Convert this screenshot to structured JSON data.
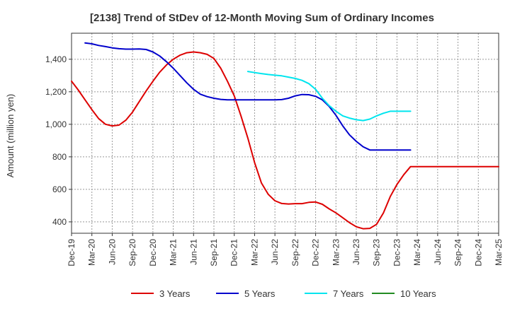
{
  "chart_data": {
    "type": "line",
    "title": "[2138]  Trend of StDev of 12-Month Moving Sum of Ordinary Incomes",
    "xlabel": "",
    "ylabel": "Amount (million yen)",
    "ylim": [
      330,
      1560
    ],
    "yticks": [
      400,
      600,
      800,
      1000,
      1200,
      1400
    ],
    "ytick_labels": [
      "400",
      "600",
      "800",
      "1,000",
      "1,200",
      "1,400"
    ],
    "x_tick_labels": [
      "Dec-19",
      "Mar-20",
      "Jun-20",
      "Sep-20",
      "Dec-20",
      "Mar-21",
      "Jun-21",
      "Sep-21",
      "Dec-21",
      "Mar-22",
      "Jun-22",
      "Sep-22",
      "Dec-22",
      "Mar-23",
      "Jun-23",
      "Sep-23",
      "Dec-23",
      "Mar-24",
      "Jun-24",
      "Sep-24",
      "Dec-24",
      "Mar-25"
    ],
    "x_index_range": [
      0,
      63
    ],
    "grid": true,
    "legend_position": "bottom",
    "series": [
      {
        "name": "3 Years",
        "color": "#dd0000",
        "x": [
          0,
          1,
          2,
          3,
          4,
          5,
          6,
          7,
          8,
          9,
          10,
          11,
          12,
          13,
          14,
          15,
          16,
          17,
          18,
          19,
          20,
          21,
          22,
          23,
          24,
          25,
          26,
          27,
          28,
          29,
          30,
          31,
          32,
          33,
          34,
          35,
          36,
          37,
          38,
          39,
          40,
          41,
          42,
          43,
          44,
          45,
          46,
          47,
          48,
          49,
          50,
          51,
          52,
          53,
          54,
          55,
          56,
          57,
          58,
          59,
          60,
          61,
          62,
          63
        ],
        "values": [
          1265,
          1210,
          1150,
          1090,
          1035,
          1000,
          990,
          995,
          1025,
          1075,
          1140,
          1205,
          1265,
          1320,
          1365,
          1400,
          1425,
          1440,
          1445,
          1440,
          1430,
          1405,
          1345,
          1265,
          1175,
          1050,
          915,
          765,
          640,
          570,
          530,
          513,
          510,
          512,
          512,
          520,
          522,
          508,
          480,
          455,
          425,
          395,
          370,
          358,
          360,
          385,
          455,
          555,
          630,
          690,
          740,
          740,
          740,
          740,
          740,
          740,
          740,
          740,
          740,
          740,
          740,
          740,
          740,
          740
        ]
      },
      {
        "name": "5 Years",
        "color": "#0000cc",
        "x": [
          2,
          3,
          4,
          5,
          6,
          7,
          8,
          9,
          10,
          11,
          12,
          13,
          14,
          15,
          16,
          17,
          18,
          19,
          20,
          21,
          22,
          23,
          24,
          25,
          26,
          27,
          28,
          29,
          30,
          31,
          32,
          33,
          34,
          35,
          36,
          37,
          38,
          39,
          40,
          41,
          42,
          43,
          44,
          45,
          46,
          47,
          48,
          49,
          50
        ],
        "values": [
          1500,
          1495,
          1485,
          1478,
          1470,
          1465,
          1462,
          1462,
          1463,
          1460,
          1445,
          1420,
          1385,
          1345,
          1300,
          1255,
          1215,
          1185,
          1170,
          1160,
          1153,
          1150,
          1150,
          1150,
          1150,
          1150,
          1150,
          1150,
          1150,
          1152,
          1160,
          1175,
          1183,
          1182,
          1172,
          1150,
          1110,
          1055,
          990,
          935,
          895,
          862,
          842,
          842,
          842,
          842,
          842,
          842,
          842
        ]
      },
      {
        "name": "7 Years",
        "color": "#00e5ee",
        "x": [
          26,
          27,
          28,
          29,
          30,
          31,
          32,
          33,
          34,
          35,
          36,
          37,
          38,
          39,
          40,
          41,
          42,
          43,
          44,
          45,
          46,
          47,
          48,
          49,
          50
        ],
        "values": [
          1325,
          1318,
          1312,
          1306,
          1302,
          1298,
          1290,
          1282,
          1270,
          1250,
          1215,
          1160,
          1115,
          1080,
          1052,
          1038,
          1028,
          1023,
          1032,
          1052,
          1068,
          1080,
          1080,
          1080,
          1080
        ]
      },
      {
        "name": "10 Years",
        "color": "#228b22",
        "x": [],
        "values": []
      }
    ]
  }
}
